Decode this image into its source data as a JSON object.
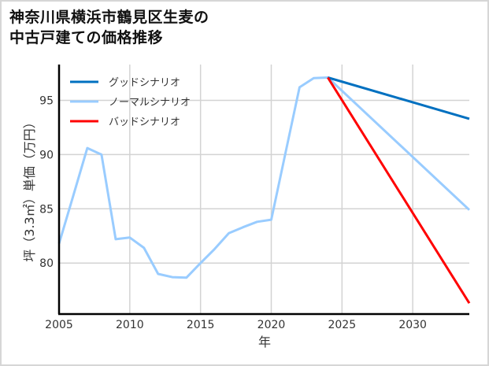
{
  "title": {
    "line1": "神奈川県横浜市鶴見区生麦の",
    "line2": "中古戸建ての価格推移"
  },
  "chart_data": {
    "type": "line",
    "title": "神奈川県横浜市鶴見区生麦の中古戸建ての価格推移",
    "xlabel": "年",
    "ylabel": "坪（3.3㎡）単価（万円）",
    "xlim": [
      2005,
      2034
    ],
    "ylim": [
      75.3,
      98.3
    ],
    "xticks": [
      2005,
      2010,
      2015,
      2020,
      2025,
      2030
    ],
    "yticks": [
      80,
      85,
      90,
      95
    ],
    "grid": true,
    "legend_position": "upper left",
    "series": [
      {
        "name": "グッドシナリオ",
        "color": "#0070c0",
        "x": [
          2024,
          2034
        ],
        "values": [
          97.1,
          93.3
        ]
      },
      {
        "name": "ノーマルシナリオ",
        "color": "#99ccff",
        "x": [
          2005,
          2006,
          2007,
          2008,
          2009,
          2010,
          2011,
          2012,
          2013,
          2014,
          2015,
          2016,
          2017,
          2018,
          2019,
          2020,
          2021,
          2022,
          2023,
          2024,
          2034
        ],
        "values": [
          81.8,
          86.2,
          90.6,
          90.0,
          82.2,
          82.35,
          81.4,
          79.0,
          78.7,
          78.65,
          80.0,
          81.3,
          82.75,
          83.3,
          83.8,
          84.0,
          90.1,
          96.2,
          97.05,
          97.1,
          84.9
        ]
      },
      {
        "name": "バッドシナリオ",
        "color": "#ff0000",
        "x": [
          2024,
          2034
        ],
        "values": [
          97.1,
          76.3
        ]
      }
    ]
  }
}
